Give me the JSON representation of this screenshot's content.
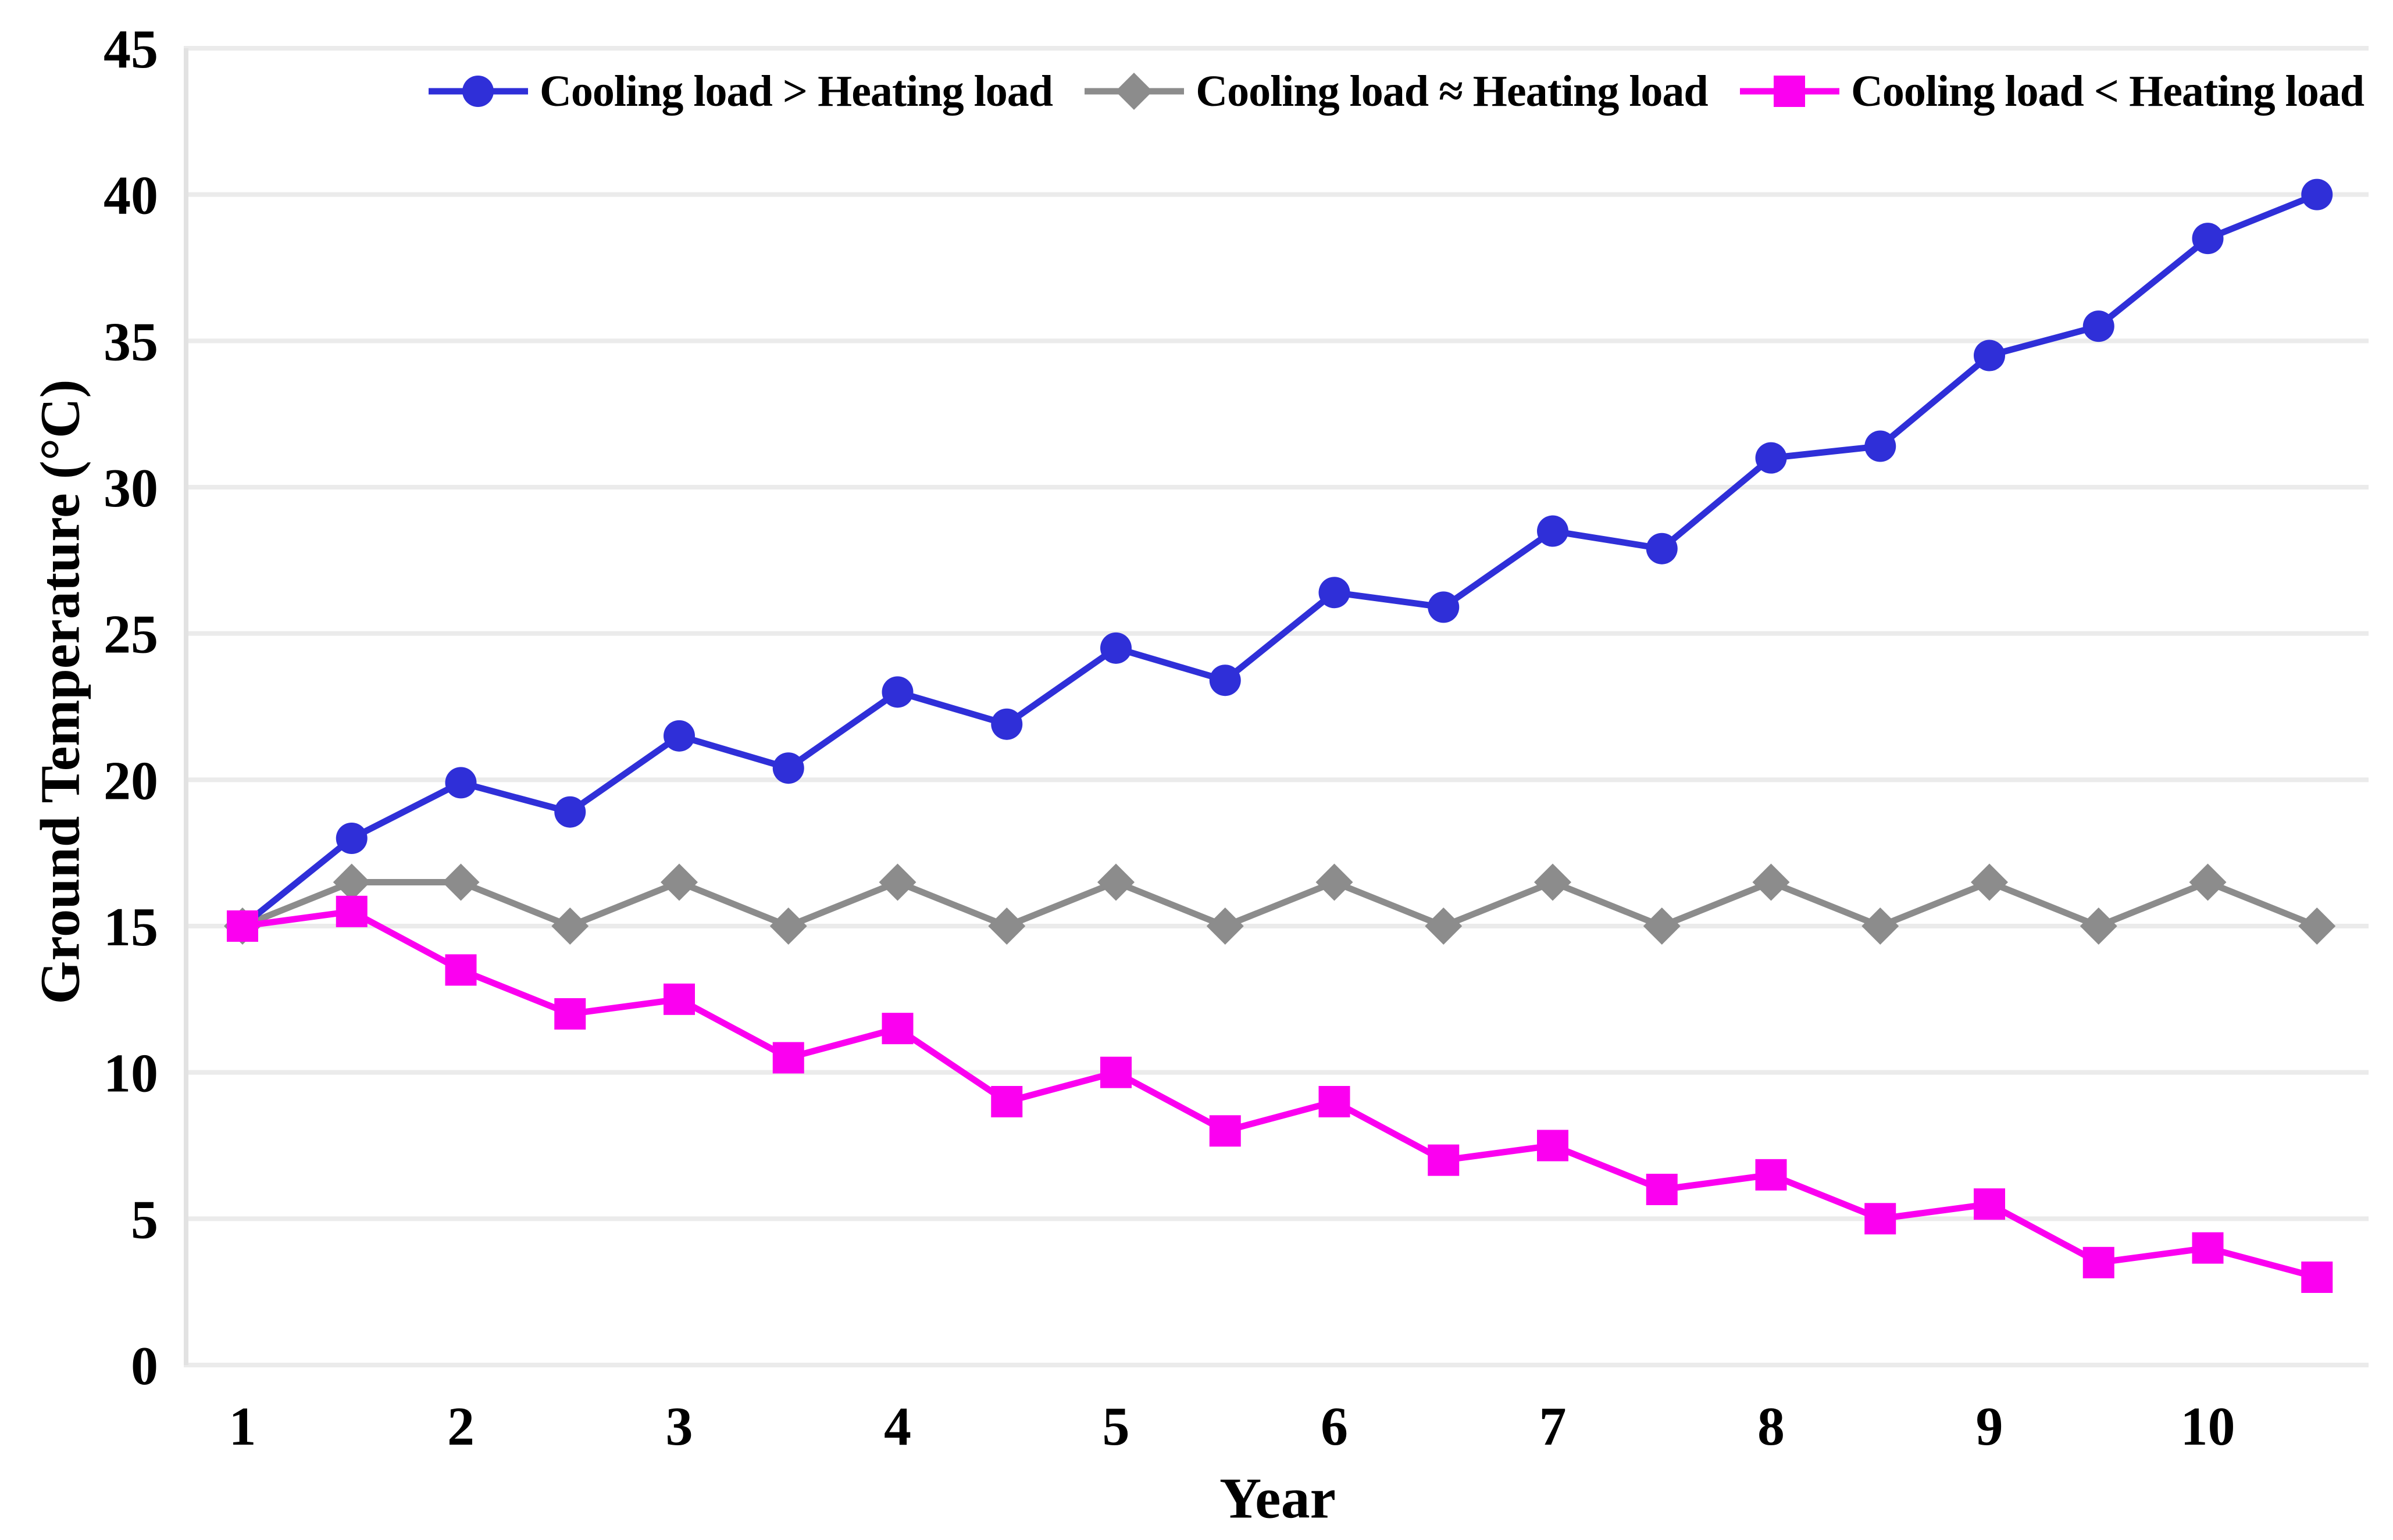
{
  "chart_data": {
    "type": "line",
    "title": "",
    "xlabel": "Year",
    "ylabel": "Ground Temperature (°C)",
    "x": [
      1,
      1.5,
      2,
      2.5,
      3,
      3.5,
      4,
      4.5,
      5,
      5.5,
      6,
      6.5,
      7,
      7.5,
      8,
      8.5,
      9,
      9.5,
      10,
      10.5
    ],
    "x_ticks": [
      1,
      2,
      3,
      4,
      5,
      6,
      7,
      8,
      9,
      10
    ],
    "y_ticks": [
      0,
      5,
      10,
      15,
      20,
      25,
      30,
      35,
      40,
      45
    ],
    "xlim": [
      0.74,
      10.74
    ],
    "ylim": [
      0,
      45
    ],
    "grid": "horizontal",
    "grid_color": "#ebebeb",
    "axis_line_color": "#e2e2e2",
    "text_color": "#000000",
    "legend_position": "top",
    "series": [
      {
        "name": "Cooling load > Heating load",
        "color": "#2f2fd8",
        "marker": "circle",
        "values": [
          15,
          18,
          19.9,
          18.9,
          21.5,
          20.4,
          23,
          21.9,
          24.5,
          23.4,
          26.4,
          25.9,
          28.5,
          27.9,
          31,
          31.4,
          34.5,
          35.5,
          38.5,
          40
        ]
      },
      {
        "name": "Cooling load ≈ Heating load",
        "color": "#8c8c8c",
        "marker": "diamond",
        "values": [
          15,
          16.5,
          16.5,
          15,
          16.5,
          15,
          16.5,
          15,
          16.5,
          15,
          16.5,
          15,
          16.5,
          15,
          16.5,
          15,
          16.5,
          15,
          16.5,
          15
        ]
      },
      {
        "name": "Cooling load < Heating load",
        "color": "#fb00f0",
        "marker": "square",
        "values": [
          15,
          15.5,
          13.5,
          12,
          12.5,
          10.5,
          11.5,
          9,
          10,
          8,
          9,
          7,
          7.5,
          6,
          6.5,
          5,
          5.5,
          3.5,
          4,
          3
        ]
      }
    ]
  }
}
